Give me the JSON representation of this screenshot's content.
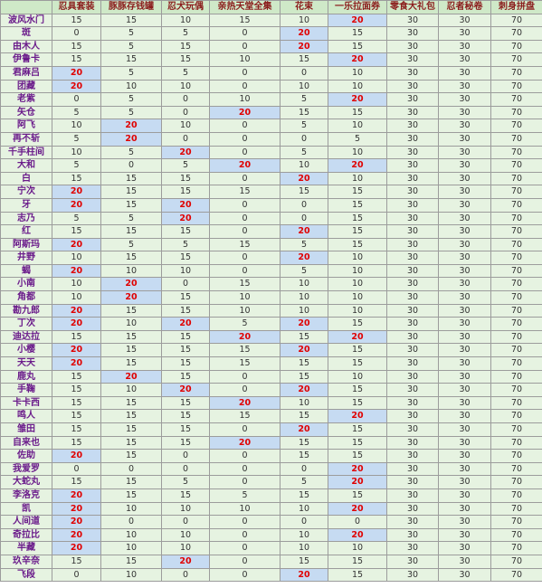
{
  "headers": [
    "忍具套装",
    "豚豚存钱罐",
    "忍犬玩偶",
    "亲热天堂全集",
    "花束",
    "一乐拉面券",
    "零食大礼包",
    "忍者秘卷",
    "刺身拼盘"
  ],
  "rows": [
    {
      "name": "波风水门",
      "v": [
        15,
        15,
        10,
        15,
        10,
        20,
        30,
        30,
        70
      ]
    },
    {
      "name": "斑",
      "v": [
        0,
        5,
        5,
        0,
        20,
        15,
        30,
        30,
        70
      ]
    },
    {
      "name": "由木人",
      "v": [
        15,
        5,
        15,
        0,
        20,
        15,
        30,
        30,
        70
      ]
    },
    {
      "name": "伊鲁卡",
      "v": [
        15,
        15,
        15,
        10,
        15,
        20,
        30,
        30,
        70
      ]
    },
    {
      "name": "君麻吕",
      "v": [
        20,
        5,
        5,
        0,
        0,
        10,
        30,
        30,
        70
      ]
    },
    {
      "name": "团藏",
      "v": [
        20,
        10,
        10,
        0,
        10,
        10,
        30,
        30,
        70
      ]
    },
    {
      "name": "老紫",
      "v": [
        0,
        5,
        0,
        10,
        5,
        20,
        30,
        30,
        70
      ]
    },
    {
      "name": "矢仓",
      "v": [
        5,
        5,
        0,
        20,
        15,
        15,
        30,
        30,
        70
      ]
    },
    {
      "name": "阿飞",
      "v": [
        10,
        20,
        10,
        0,
        5,
        10,
        30,
        30,
        70
      ]
    },
    {
      "name": "再不斩",
      "v": [
        5,
        20,
        0,
        0,
        0,
        5,
        30,
        30,
        70
      ]
    },
    {
      "name": "千手柱间",
      "v": [
        10,
        5,
        20,
        0,
        5,
        10,
        30,
        30,
        70
      ]
    },
    {
      "name": "大和",
      "v": [
        5,
        0,
        5,
        20,
        10,
        20,
        30,
        30,
        70
      ]
    },
    {
      "name": "白",
      "v": [
        15,
        15,
        15,
        0,
        20,
        10,
        30,
        30,
        70
      ]
    },
    {
      "name": "宁次",
      "v": [
        20,
        15,
        15,
        15,
        15,
        15,
        30,
        30,
        70
      ]
    },
    {
      "name": "牙",
      "v": [
        20,
        15,
        20,
        0,
        0,
        15,
        30,
        30,
        70
      ]
    },
    {
      "name": "志乃",
      "v": [
        5,
        5,
        20,
        0,
        0,
        15,
        30,
        30,
        70
      ]
    },
    {
      "name": "红",
      "v": [
        15,
        15,
        15,
        0,
        20,
        15,
        30,
        30,
        70
      ]
    },
    {
      "name": "阿斯玛",
      "v": [
        20,
        5,
        5,
        15,
        5,
        15,
        30,
        30,
        70
      ]
    },
    {
      "name": "井野",
      "v": [
        10,
        15,
        15,
        0,
        20,
        10,
        30,
        30,
        70
      ]
    },
    {
      "name": "蝎",
      "v": [
        20,
        10,
        10,
        0,
        5,
        10,
        30,
        30,
        70
      ]
    },
    {
      "name": "小南",
      "v": [
        10,
        20,
        0,
        15,
        10,
        10,
        30,
        30,
        70
      ]
    },
    {
      "name": "角都",
      "v": [
        10,
        20,
        15,
        10,
        10,
        10,
        30,
        30,
        70
      ]
    },
    {
      "name": "勘九郎",
      "v": [
        20,
        15,
        15,
        10,
        10,
        10,
        30,
        30,
        70
      ]
    },
    {
      "name": "丁次",
      "v": [
        20,
        10,
        20,
        5,
        20,
        15,
        30,
        30,
        70
      ]
    },
    {
      "name": "迪达拉",
      "v": [
        15,
        15,
        15,
        20,
        15,
        20,
        30,
        30,
        70
      ]
    },
    {
      "name": "小樱",
      "v": [
        20,
        15,
        15,
        15,
        20,
        15,
        30,
        30,
        70
      ]
    },
    {
      "name": "天天",
      "v": [
        20,
        15,
        15,
        15,
        15,
        15,
        30,
        30,
        70
      ]
    },
    {
      "name": "鹿丸",
      "v": [
        15,
        20,
        15,
        0,
        15,
        10,
        30,
        30,
        70
      ]
    },
    {
      "name": "手鞠",
      "v": [
        15,
        10,
        20,
        0,
        20,
        15,
        30,
        30,
        70
      ]
    },
    {
      "name": "卡卡西",
      "v": [
        15,
        15,
        15,
        20,
        10,
        15,
        30,
        30,
        70
      ]
    },
    {
      "name": "鸣人",
      "v": [
        15,
        15,
        15,
        15,
        15,
        20,
        30,
        30,
        70
      ]
    },
    {
      "name": "雏田",
      "v": [
        15,
        15,
        15,
        0,
        20,
        15,
        30,
        30,
        70
      ]
    },
    {
      "name": "自来也",
      "v": [
        15,
        15,
        15,
        20,
        15,
        15,
        30,
        30,
        70
      ]
    },
    {
      "name": "佐助",
      "v": [
        20,
        15,
        0,
        0,
        15,
        15,
        30,
        30,
        70
      ]
    },
    {
      "name": "我爱罗",
      "v": [
        0,
        0,
        0,
        0,
        0,
        20,
        30,
        30,
        70
      ]
    },
    {
      "name": "大蛇丸",
      "v": [
        15,
        15,
        5,
        0,
        5,
        20,
        30,
        30,
        70
      ]
    },
    {
      "name": "李洛克",
      "v": [
        20,
        15,
        15,
        5,
        15,
        15,
        30,
        30,
        70
      ]
    },
    {
      "name": "凯",
      "v": [
        20,
        10,
        10,
        10,
        10,
        20,
        30,
        30,
        70
      ]
    },
    {
      "name": "人间道",
      "v": [
        20,
        0,
        0,
        0,
        0,
        0,
        30,
        30,
        70
      ]
    },
    {
      "name": "奇拉比",
      "v": [
        20,
        10,
        10,
        0,
        10,
        20,
        30,
        30,
        70
      ]
    },
    {
      "name": "半藏",
      "v": [
        20,
        10,
        10,
        0,
        10,
        10,
        30,
        30,
        70
      ]
    },
    {
      "name": "玖辛奈",
      "v": [
        15,
        15,
        20,
        0,
        15,
        15,
        30,
        30,
        70
      ]
    },
    {
      "name": "飞段",
      "v": [
        0,
        10,
        0,
        0,
        20,
        15,
        30,
        30,
        70
      ]
    }
  ]
}
